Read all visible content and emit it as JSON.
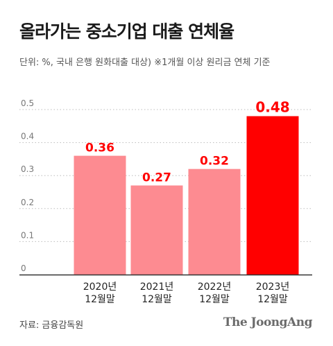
{
  "header": {
    "title": "올라가는 중소기업 대출 연체율",
    "subtitle": "단위: %, 국내 은행 원화대출 대상) ※1개월 이상 원리금 연체 기준"
  },
  "footer": {
    "source": "자료: 금융감독원",
    "logo": "The JoongAng"
  },
  "chart_data": {
    "type": "bar",
    "title": "올라가는 중소기업 대출 연체율",
    "xlabel": "",
    "ylabel": "",
    "categories": [
      [
        "2020년",
        "12월말"
      ],
      [
        "2021년",
        "12월말"
      ],
      [
        "2022년",
        "12월말"
      ],
      [
        "2023년",
        "12월말"
      ]
    ],
    "values": [
      0.36,
      0.27,
      0.32,
      0.48
    ],
    "value_labels": [
      "0.36",
      "0.27",
      "0.32",
      "0.48"
    ],
    "ylim": [
      0,
      0.5
    ],
    "yticks": [
      "0",
      "0.1",
      "0.2",
      "0.3",
      "0.4",
      "0.5"
    ],
    "grid": true,
    "colors": {
      "bar": "#fd8b91",
      "highlight_bar": "#ff0000",
      "label": "#ff0000",
      "grid": "#bbbbbb",
      "axis": "#333333",
      "tick_text": "#777777"
    },
    "highlight_index": 3
  }
}
